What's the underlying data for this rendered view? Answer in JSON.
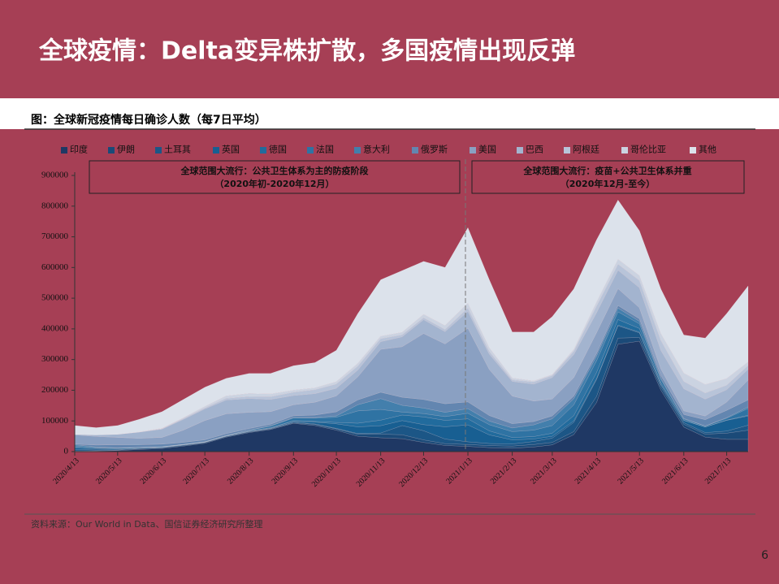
{
  "slide_title": "全球疫情：Delta变异株扩散，多国疫情出现反弹",
  "caption": "图：全球新冠疫情每日确诊人数（每7日平均）",
  "source": "资料来源：Our World in Data、国信证券经济研究所整理",
  "page_number": "6",
  "chart_data": {
    "type": "stacked-area",
    "legend": "top",
    "annotations": [
      [
        "全球范围大流行：公共卫生体系为主的防疫阶段",
        "（2020年初-2020年12月）"
      ],
      [
        "全球范围大流行：疫苗+公共卫生体系并重",
        "（2020年12月-至今）"
      ]
    ],
    "x": [
      "2020/4/13",
      "2020/4/28",
      "2020/5/13",
      "2020/5/28",
      "2020/6/13",
      "2020/6/28",
      "2020/7/13",
      "2020/7/28",
      "2020/8/13",
      "2020/8/28",
      "2020/9/13",
      "2020/9/28",
      "2020/10/13",
      "2020/10/28",
      "2020/11/13",
      "2020/11/28",
      "2020/12/13",
      "2020/12/28",
      "2021/1/13",
      "2021/1/28",
      "2021/2/13",
      "2021/2/28",
      "2021/3/13",
      "2021/3/28",
      "2021/4/13",
      "2021/4/28",
      "2021/5/13",
      "2021/5/28",
      "2021/6/13",
      "2021/6/28",
      "2021/7/13",
      "2021/7/28"
    ],
    "xlim": [
      "2020/4/13",
      "2021/7/28"
    ],
    "xticks": [
      "2020/4/13",
      "2020/5/13",
      "2020/6/13",
      "2020/7/13",
      "2020/8/13",
      "2020/9/13",
      "2020/10/13",
      "2020/11/13",
      "2020/12/13",
      "2021/1/13",
      "2021/2/13",
      "2021/3/13",
      "2021/4/13",
      "2021/5/13",
      "2021/6/13",
      "2021/7/13"
    ],
    "ylim": [
      0,
      900000
    ],
    "yticks": [
      0,
      100000,
      200000,
      300000,
      400000,
      500000,
      600000,
      700000,
      800000,
      900000
    ],
    "series": [
      {
        "name": "印度",
        "color": "#1f3864",
        "values": [
          1000,
          2000,
          3500,
          7000,
          10000,
          18000,
          27000,
          47000,
          62000,
          72000,
          92000,
          85000,
          70000,
          50000,
          45000,
          42000,
          30000,
          20000,
          17000,
          13000,
          11000,
          15000,
          22000,
          55000,
          160000,
          350000,
          360000,
          200000,
          80000,
          47000,
          40000,
          40000
        ]
      },
      {
        "name": "伊朗",
        "color": "#1b4a78",
        "values": [
          1500,
          1000,
          1500,
          2500,
          2500,
          2500,
          2500,
          2500,
          2300,
          2000,
          2500,
          3500,
          4000,
          6500,
          12000,
          13000,
          8000,
          6000,
          6000,
          6500,
          7000,
          8000,
          8000,
          10000,
          20000,
          20000,
          12000,
          10000,
          9000,
          10000,
          20000,
          30000
        ]
      },
      {
        "name": "土耳其",
        "color": "#1c5686",
        "values": [
          4000,
          2500,
          1800,
          1000,
          1000,
          1200,
          1000,
          900,
          1200,
          1500,
          1700,
          1700,
          1600,
          2200,
          3500,
          30000,
          30000,
          15000,
          9000,
          7000,
          7000,
          10000,
          14000,
          30000,
          55000,
          40000,
          15000,
          7000,
          5500,
          5000,
          7000,
          16000
        ]
      },
      {
        "name": "英国",
        "color": "#185f92",
        "values": [
          5000,
          4500,
          3000,
          2000,
          1200,
          900,
          600,
          700,
          900,
          1200,
          3000,
          6000,
          15000,
          22000,
          24000,
          16000,
          20000,
          40000,
          55000,
          28000,
          13000,
          8000,
          6000,
          5000,
          3000,
          2500,
          2300,
          3000,
          7000,
          18000,
          35000,
          30000
        ]
      },
      {
        "name": "德国",
        "color": "#216b9d",
        "values": [
          3000,
          1500,
          800,
          500,
          400,
          400,
          400,
          600,
          1200,
          1300,
          1500,
          2000,
          4500,
          12000,
          18000,
          18000,
          25000,
          21000,
          20000,
          13000,
          8000,
          8000,
          10000,
          17000,
          20000,
          18000,
          12000,
          5000,
          1000,
          600,
          800,
          2500
        ]
      },
      {
        "name": "法国",
        "color": "#2f73a3",
        "values": [
          4000,
          1500,
          800,
          400,
          400,
          500,
          600,
          900,
          2000,
          5000,
          9000,
          11000,
          17000,
          40000,
          35000,
          10000,
          11000,
          12000,
          18000,
          20000,
          19000,
          21000,
          25000,
          35000,
          38000,
          25000,
          15000,
          10000,
          4000,
          2500,
          6000,
          22000
        ]
      },
      {
        "name": "意大利",
        "color": "#437fac",
        "values": [
          3500,
          2000,
          900,
          500,
          300,
          200,
          200,
          300,
          500,
          1300,
          1600,
          1800,
          4500,
          20000,
          35000,
          22000,
          18000,
          14000,
          15000,
          12000,
          12000,
          17000,
          22000,
          20000,
          15000,
          12000,
          8000,
          4000,
          1500,
          900,
          1800,
          5000
        ]
      },
      {
        "name": "俄罗斯",
        "color": "#6386b0",
        "values": [
          2500,
          6500,
          10000,
          8500,
          8500,
          6500,
          6000,
          5500,
          5000,
          5000,
          5500,
          8000,
          13000,
          16000,
          21000,
          26000,
          28000,
          28000,
          22000,
          18000,
          14000,
          11000,
          9500,
          8800,
          8700,
          8500,
          8500,
          8700,
          13000,
          20000,
          24000,
          23000
        ]
      },
      {
        "name": "美国",
        "color": "#8aa0c2",
        "values": [
          30000,
          28000,
          24000,
          21000,
          22000,
          40000,
          63000,
          65000,
          53000,
          41000,
          36000,
          42000,
          52000,
          75000,
          140000,
          165000,
          215000,
          195000,
          240000,
          150000,
          90000,
          67000,
          55000,
          60000,
          68000,
          55000,
          36000,
          22000,
          12000,
          12000,
          27000,
          65000
        ]
      },
      {
        "name": "巴西",
        "color": "#a3b4cf",
        "values": [
          2000,
          5000,
          10000,
          20000,
          27000,
          35000,
          38000,
          45000,
          45000,
          40000,
          30000,
          28000,
          25000,
          22000,
          25000,
          32000,
          45000,
          40000,
          55000,
          50000,
          48000,
          55000,
          70000,
          75000,
          65000,
          60000,
          65000,
          60000,
          72000,
          55000,
          40000,
          35000
        ]
      },
      {
        "name": "阿根廷",
        "color": "#b8c4d9",
        "values": [
          100,
          150,
          250,
          500,
          1300,
          2500,
          3200,
          5500,
          7000,
          9000,
          11000,
          13000,
          14000,
          13000,
          10000,
          7000,
          6500,
          7000,
          11000,
          9000,
          5000,
          7000,
          6500,
          11000,
          22000,
          20000,
          24000,
          33000,
          24000,
          20000,
          15000,
          12000
        ]
      },
      {
        "name": "哥伦比亚",
        "color": "#cbd3e1",
        "values": [
          100,
          200,
          400,
          700,
          1500,
          3000,
          5000,
          8000,
          10000,
          9000,
          6500,
          6000,
          7500,
          9000,
          8000,
          8000,
          11000,
          13000,
          16000,
          12000,
          6000,
          3500,
          3500,
          6000,
          13000,
          16000,
          16000,
          22000,
          27000,
          28000,
          22000,
          12000
        ]
      },
      {
        "name": "其他",
        "color": "#dce2eb",
        "values": [
          28300,
          23150,
          28050,
          40400,
          53900,
          59300,
          62500,
          57100,
          64900,
          66700,
          79700,
          82000,
          101900,
          162300,
          183500,
          201000,
          172500,
          189000,
          246000,
          221500,
          150000,
          159500,
          188500,
          197200,
          202300,
          193000,
          146200,
          145300,
          124000,
          151000,
          211400,
          247500
        ]
      }
    ]
  }
}
